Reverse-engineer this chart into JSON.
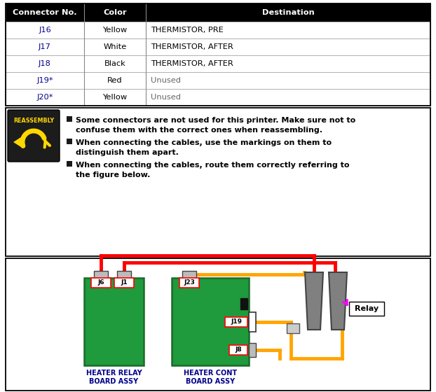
{
  "table_headers": [
    "Connector No.",
    "Color",
    "Destination"
  ],
  "table_rows": [
    [
      "J16",
      "Yellow",
      "THERMISTOR, PRE"
    ],
    [
      "J17",
      "White",
      "THERMISTOR, AFTER"
    ],
    [
      "J18",
      "Black",
      "THERMISTOR, AFTER"
    ],
    [
      "J19*",
      "Red",
      "Unused"
    ],
    [
      "J20*",
      "Yellow",
      "Unused"
    ]
  ],
  "header_bg": "#000000",
  "header_fg": "#ffffff",
  "connector_color": "#00008B",
  "unused_color": "#666666",
  "dest_color": "#000000",
  "bullet_points": [
    [
      "Some connectors are not used for this printer. Make sure not to",
      "confuse them with the correct ones when reassembling."
    ],
    [
      "When connecting the cables, use the markings on them to",
      "distinguish them apart."
    ],
    [
      "When connecting the cables, route them correctly referring to",
      "the figure below."
    ]
  ],
  "board1_label": "HEATER RELAY\nBOARD ASSY",
  "board2_label": "HEATER CONT\nBOARD ASSY",
  "green_color": "#1f9a3c",
  "orange_color": "#FFA500",
  "red_color": "#FF0000",
  "magenta_color": "#FF00FF",
  "gray_color": "#808080",
  "reassembly_bg": "#1c1c1c",
  "reassembly_text": "#FFD700"
}
